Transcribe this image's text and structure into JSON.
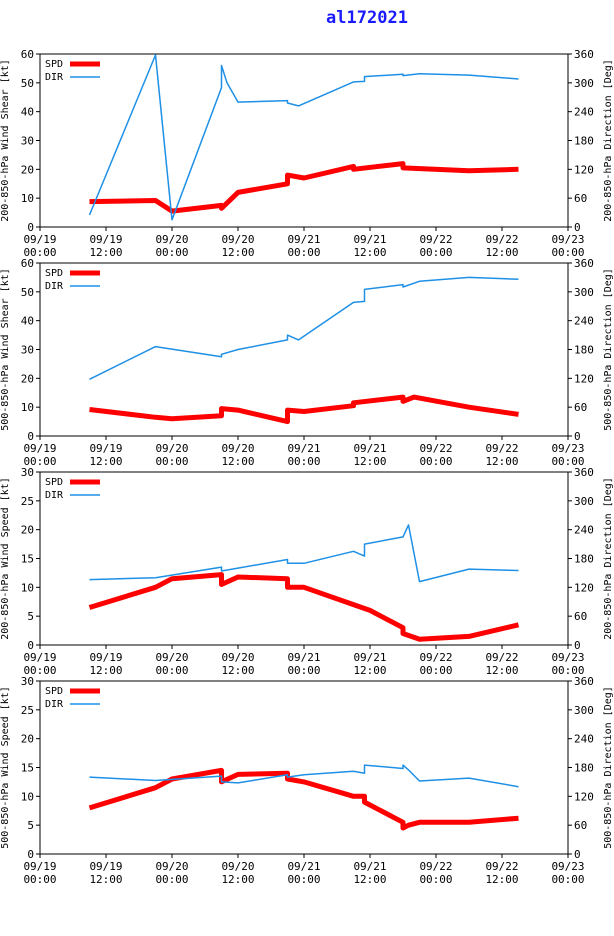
{
  "title": "al172021",
  "colors": {
    "spd": "#ff0000",
    "dir": "#1e90e6",
    "title": "#1a1aff",
    "axis": "#000000"
  },
  "x_ticks": [
    {
      "date": "09/19",
      "time": "00:00"
    },
    {
      "date": "09/19",
      "time": "12:00"
    },
    {
      "date": "09/20",
      "time": "00:00"
    },
    {
      "date": "09/20",
      "time": "12:00"
    },
    {
      "date": "09/21",
      "time": "00:00"
    },
    {
      "date": "09/21",
      "time": "12:00"
    },
    {
      "date": "09/22",
      "time": "00:00"
    },
    {
      "date": "09/22",
      "time": "12:00"
    },
    {
      "date": "09/23",
      "time": "00:00"
    }
  ],
  "chart_data": [
    {
      "type": "line",
      "ylabel_left": "200-850-hPa Wind Shear [kt]",
      "ylabel_right": "200-850-hPa Direction [Deg]",
      "ylim_left": [
        0,
        60
      ],
      "yticks_left": [
        0,
        10,
        20,
        30,
        40,
        50,
        60
      ],
      "ylim_right": [
        0,
        360
      ],
      "yticks_right": [
        0,
        60,
        120,
        180,
        240,
        300,
        360
      ],
      "xlim_hours": [
        0,
        96
      ],
      "legend": [
        "SPD",
        "DIR"
      ],
      "series": [
        {
          "name": "SPD",
          "axis": "left",
          "x": [
            9,
            21,
            24,
            33,
            33,
            36,
            45,
            45,
            48,
            57,
            57,
            66,
            66,
            78,
            87
          ],
          "y": [
            8.8,
            9.2,
            5.5,
            7.5,
            6.5,
            12,
            15,
            18,
            17,
            21,
            20,
            22,
            20.5,
            19.5,
            20
          ]
        },
        {
          "name": "DIR",
          "axis": "right",
          "x": [
            9,
            21,
            24,
            33,
            33,
            34,
            36,
            45,
            45,
            47,
            57,
            59,
            59,
            66,
            66,
            69,
            78,
            87
          ],
          "y": [
            25,
            358,
            15,
            290,
            336,
            300,
            260,
            263,
            258,
            252,
            302,
            303,
            313,
            318,
            315,
            319,
            316,
            308
          ]
        }
      ]
    },
    {
      "type": "line",
      "ylabel_left": "500-850-hPa Wind Shear [kt]",
      "ylabel_right": "500-850-hPa Direction [Deg]",
      "ylim_left": [
        0,
        60
      ],
      "yticks_left": [
        0,
        10,
        20,
        30,
        40,
        50,
        60
      ],
      "ylim_right": [
        0,
        360
      ],
      "yticks_right": [
        0,
        60,
        120,
        180,
        240,
        300,
        360
      ],
      "xlim_hours": [
        0,
        96
      ],
      "legend": [
        "SPD",
        "DIR"
      ],
      "series": [
        {
          "name": "SPD",
          "axis": "left",
          "x": [
            9,
            21,
            24,
            33,
            33,
            36,
            45,
            45,
            48,
            57,
            57,
            66,
            66,
            68,
            78,
            87
          ],
          "y": [
            9.2,
            6.5,
            6,
            7,
            9.5,
            9,
            5,
            9,
            8.5,
            10.5,
            11.5,
            13.5,
            12,
            13.5,
            10,
            7.5
          ]
        },
        {
          "name": "DIR",
          "axis": "right",
          "x": [
            9,
            21,
            33,
            33,
            36,
            45,
            45,
            47,
            57,
            59,
            59,
            66,
            66,
            69,
            78,
            87
          ],
          "y": [
            118,
            186,
            165,
            170,
            180,
            200,
            210,
            200,
            278,
            280,
            305,
            315,
            310,
            322,
            330,
            326
          ]
        }
      ]
    },
    {
      "type": "line",
      "ylabel_left": "200-850-hPa Wind Speed [kt]",
      "ylabel_right": "200-850-hPa Direction [Deg]",
      "ylim_left": [
        0,
        30
      ],
      "yticks_left": [
        0,
        5,
        10,
        15,
        20,
        25,
        30
      ],
      "ylim_right": [
        0,
        360
      ],
      "yticks_right": [
        0,
        60,
        120,
        180,
        240,
        300,
        360
      ],
      "xlim_hours": [
        0,
        96
      ],
      "legend": [
        "SPD",
        "DIR"
      ],
      "series": [
        {
          "name": "SPD",
          "axis": "left",
          "x": [
            9,
            21,
            24,
            33,
            33,
            36,
            45,
            45,
            48,
            57,
            60,
            66,
            66,
            69,
            78,
            87
          ],
          "y": [
            6.5,
            10,
            11.5,
            12.2,
            10.5,
            11.8,
            11.5,
            10,
            10,
            7,
            6,
            3,
            2,
            1,
            1.5,
            3.5
          ]
        },
        {
          "name": "DIR",
          "axis": "right",
          "x": [
            9,
            21,
            33,
            33,
            45,
            45,
            48,
            57,
            59,
            59,
            66,
            67,
            69,
            78,
            87
          ],
          "y": [
            136,
            140,
            162,
            154,
            178,
            170,
            170,
            195,
            185,
            210,
            225,
            250,
            132,
            158,
            155
          ]
        }
      ]
    },
    {
      "type": "line",
      "ylabel_left": "500-850-hPa Wind Speed [kt]",
      "ylabel_right": "500-850-hPa Direction [Deg]",
      "ylim_left": [
        0,
        30
      ],
      "yticks_left": [
        0,
        5,
        10,
        15,
        20,
        25,
        30
      ],
      "ylim_right": [
        0,
        360
      ],
      "yticks_right": [
        0,
        60,
        120,
        180,
        240,
        300,
        360
      ],
      "xlim_hours": [
        0,
        96
      ],
      "legend": [
        "SPD",
        "DIR"
      ],
      "series": [
        {
          "name": "SPD",
          "axis": "left",
          "x": [
            9,
            21,
            24,
            33,
            33,
            36,
            45,
            45,
            48,
            57,
            59,
            59,
            66,
            66,
            67,
            69,
            78,
            87
          ],
          "y": [
            8,
            11.5,
            13,
            14.5,
            12.5,
            13.8,
            14,
            13,
            12.5,
            10,
            10,
            9,
            5.5,
            4.5,
            5,
            5.5,
            5.5,
            6.2
          ]
        },
        {
          "name": "DIR",
          "axis": "right",
          "x": [
            9,
            21,
            33,
            33,
            36,
            45,
            45,
            48,
            57,
            59,
            59,
            66,
            66,
            67,
            69,
            78,
            87
          ],
          "y": [
            160,
            153,
            162,
            150,
            148,
            165,
            160,
            165,
            172,
            168,
            185,
            178,
            185,
            175,
            152,
            158,
            140
          ]
        }
      ]
    }
  ]
}
